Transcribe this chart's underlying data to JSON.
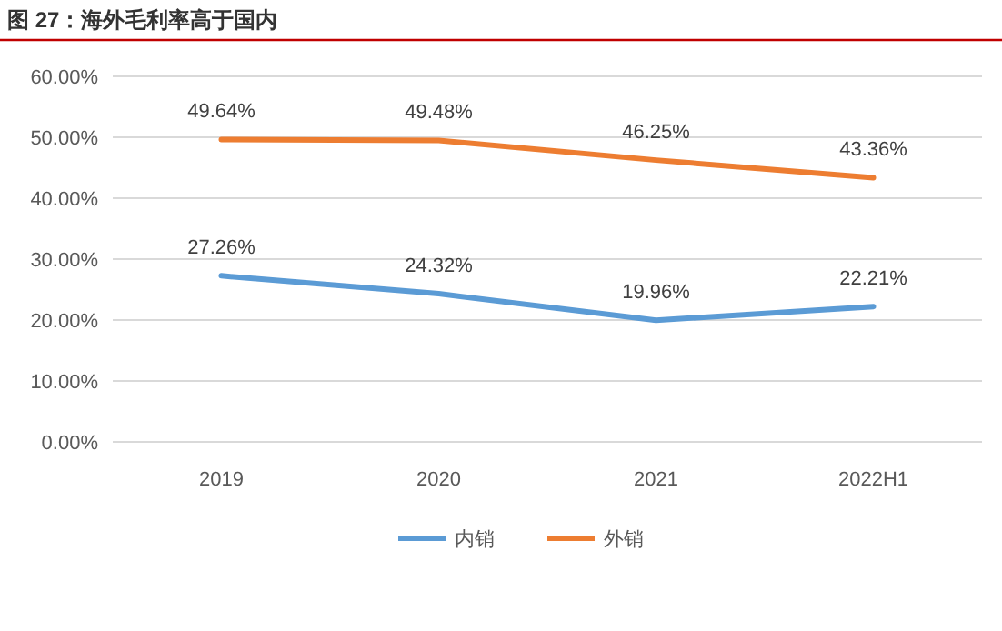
{
  "chart_data": {
    "type": "line",
    "title": "图 27：海外毛利率高于国内",
    "categories": [
      "2019",
      "2020",
      "2021",
      "2022H1"
    ],
    "series": [
      {
        "name": "内销",
        "color": "#5b9bd5",
        "values": [
          27.26,
          24.32,
          19.96,
          22.21
        ]
      },
      {
        "name": "外销",
        "color": "#ed7d31",
        "values": [
          49.64,
          49.48,
          46.25,
          43.36
        ]
      }
    ],
    "ylim": [
      0,
      60
    ],
    "yticks": [
      {
        "value": 0,
        "label": "0.00%"
      },
      {
        "value": 10,
        "label": "10.00%"
      },
      {
        "value": 20,
        "label": "20.00%"
      },
      {
        "value": 30,
        "label": "30.00%"
      },
      {
        "value": 40,
        "label": "40.00%"
      },
      {
        "value": 50,
        "label": "50.00%"
      },
      {
        "value": 60,
        "label": "60.00%"
      }
    ],
    "grid": "y",
    "legend": "bottom",
    "marker": "none",
    "line_style": "solid",
    "value_labels": [
      [
        "27.26%",
        "24.32%",
        "19.96%",
        "22.21%"
      ],
      [
        "49.64%",
        "49.48%",
        "46.25%",
        "43.36%"
      ]
    ]
  }
}
